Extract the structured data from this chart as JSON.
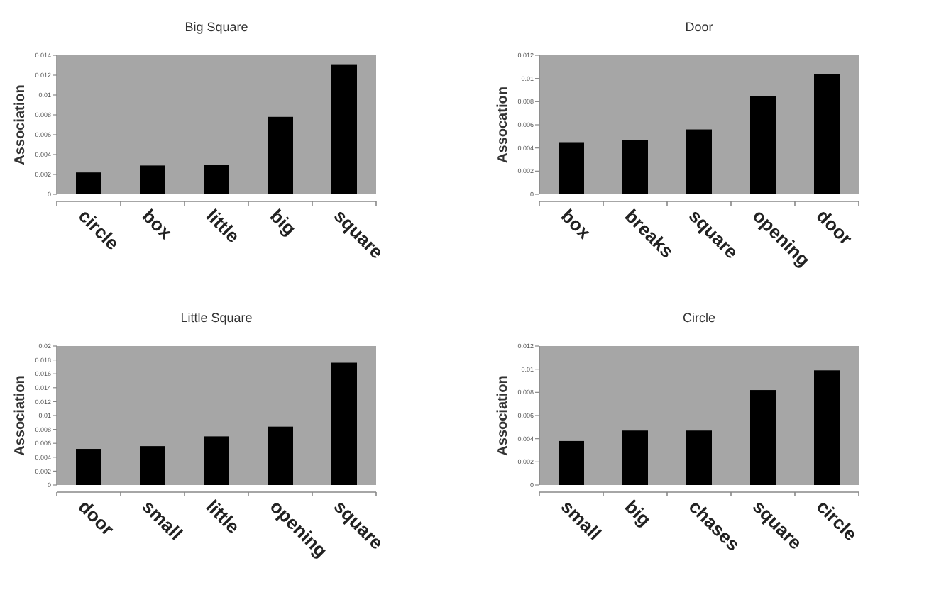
{
  "chart_data": [
    {
      "type": "bar",
      "title": "Big Square",
      "ylabel": "Association",
      "categories": [
        "circle",
        "box",
        "little",
        "big",
        "square"
      ],
      "values": [
        0.0022,
        0.0029,
        0.003,
        0.0078,
        0.0131
      ],
      "color": "#000000",
      "ylim": [
        0,
        0.014
      ],
      "yticks": [
        0,
        0.002,
        0.004,
        0.006,
        0.008,
        0.01,
        0.012,
        0.014
      ]
    },
    {
      "type": "bar",
      "title": "Door",
      "ylabel": "Assocation",
      "categories": [
        "box",
        "breaks",
        "square",
        "opening",
        "door"
      ],
      "values": [
        0.0045,
        0.0047,
        0.0056,
        0.0085,
        0.0104
      ],
      "color": "#000000",
      "ylim": [
        0,
        0.012
      ],
      "yticks": [
        0,
        0.002,
        0.004,
        0.006,
        0.008,
        0.01,
        0.012
      ]
    },
    {
      "type": "bar",
      "title": "Little Square",
      "ylabel": "Association",
      "categories": [
        "door",
        "small",
        "little",
        "opening",
        "square"
      ],
      "values": [
        0.0052,
        0.0056,
        0.007,
        0.0084,
        0.0176
      ],
      "color": "#000000",
      "ylim": [
        0,
        0.02
      ],
      "yticks": [
        0,
        0.002,
        0.004,
        0.006,
        0.008,
        0.01,
        0.012,
        0.014,
        0.016,
        0.018,
        0.02
      ]
    },
    {
      "type": "bar",
      "title": "Circle",
      "ylabel": "Association",
      "categories": [
        "small",
        "big",
        "chases",
        "square",
        "circle"
      ],
      "values": [
        0.0038,
        0.0047,
        0.0047,
        0.0082,
        0.0099
      ],
      "color": "#000000",
      "ylim": [
        0,
        0.012
      ],
      "yticks": [
        0,
        0.002,
        0.004,
        0.006,
        0.008,
        0.01,
        0.012
      ]
    }
  ]
}
